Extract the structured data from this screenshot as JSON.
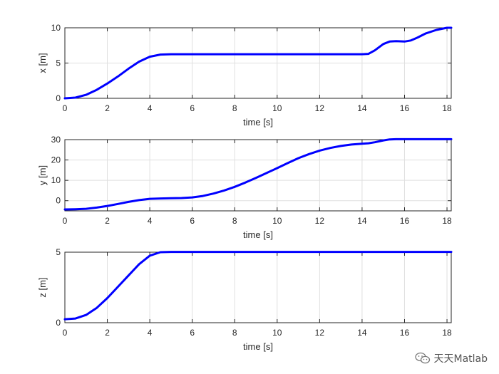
{
  "chart_data": [
    {
      "type": "line",
      "ylabel": "x [m]",
      "xlabel": "time [s]",
      "xlim": [
        0,
        18.2
      ],
      "ylim": [
        0,
        10
      ],
      "xticks": [
        0,
        2,
        4,
        6,
        8,
        10,
        12,
        14,
        16,
        18
      ],
      "yticks": [
        0,
        5,
        10
      ],
      "grid": true,
      "series": [
        {
          "color": "#0000ff",
          "x": [
            0,
            0.5,
            1,
            1.5,
            2,
            2.5,
            3,
            3.5,
            4,
            4.5,
            5,
            6,
            8,
            10,
            12,
            14,
            14.3,
            14.6,
            15,
            15.3,
            15.6,
            16,
            16.3,
            16.6,
            17,
            17.5,
            18,
            18.2
          ],
          "y": [
            0,
            0.1,
            0.5,
            1.2,
            2.1,
            3.1,
            4.2,
            5.2,
            5.9,
            6.2,
            6.25,
            6.25,
            6.25,
            6.25,
            6.25,
            6.25,
            6.3,
            6.8,
            7.7,
            8.05,
            8.1,
            8.05,
            8.2,
            8.6,
            9.2,
            9.7,
            10.0,
            10.0
          ]
        }
      ]
    },
    {
      "type": "line",
      "ylabel": "y [m]",
      "xlabel": "time [s]",
      "xlim": [
        0,
        18.2
      ],
      "ylim": [
        -5,
        30
      ],
      "xticks": [
        0,
        2,
        4,
        6,
        8,
        10,
        12,
        14,
        16,
        18
      ],
      "yticks": [
        0,
        10,
        20,
        30
      ],
      "grid": true,
      "series": [
        {
          "color": "#0000ff",
          "x": [
            0,
            0.5,
            1,
            1.5,
            2,
            2.5,
            3,
            3.5,
            4,
            4.5,
            5,
            5.5,
            6,
            6.5,
            7,
            7.5,
            8,
            8.5,
            9,
            9.5,
            10,
            10.5,
            11,
            11.5,
            12,
            12.5,
            13,
            13.5,
            14,
            14.3,
            14.6,
            15,
            15.3,
            15.6,
            16,
            16.5,
            17,
            18,
            18.2
          ],
          "y": [
            -4.3,
            -4.2,
            -4.0,
            -3.4,
            -2.6,
            -1.6,
            -0.6,
            0.3,
            0.9,
            1.1,
            1.2,
            1.3,
            1.6,
            2.3,
            3.5,
            5.0,
            6.8,
            8.9,
            11.2,
            13.6,
            16.0,
            18.5,
            20.9,
            22.9,
            24.6,
            25.9,
            26.9,
            27.6,
            28.0,
            28.2,
            28.7,
            29.6,
            30.1,
            30.2,
            30.2,
            30.2,
            30.2,
            30.2,
            30.2
          ]
        }
      ]
    },
    {
      "type": "line",
      "ylabel": "z [m]",
      "xlabel": "time [s]",
      "xlim": [
        0,
        18.2
      ],
      "ylim": [
        0,
        5
      ],
      "xticks": [
        0,
        2,
        4,
        6,
        8,
        10,
        12,
        14,
        16,
        18
      ],
      "yticks": [
        0,
        5
      ],
      "grid": true,
      "series": [
        {
          "color": "#0000ff",
          "x": [
            0,
            0.5,
            1,
            1.5,
            2,
            2.5,
            3,
            3.5,
            4,
            4.5,
            5,
            6,
            8,
            10,
            12,
            14,
            16,
            18,
            18.2
          ],
          "y": [
            0.25,
            0.3,
            0.55,
            1.05,
            1.75,
            2.55,
            3.35,
            4.15,
            4.75,
            5.0,
            5.02,
            5.02,
            5.02,
            5.02,
            5.02,
            5.02,
            5.02,
            5.02,
            5.02
          ]
        }
      ]
    }
  ],
  "watermark": {
    "text": "天天Matlab",
    "icon": "wechat-icon"
  }
}
